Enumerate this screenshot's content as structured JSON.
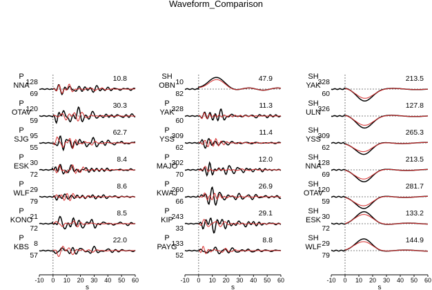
{
  "title": "Waveform_Comparison",
  "xlabel": "s",
  "colors": {
    "observed": "#000000",
    "synthetic": "#d62a2a",
    "zero_line": "#555555"
  },
  "chart_data": {
    "type": "line",
    "title": "Waveform_Comparison",
    "xlabel": "s",
    "xlim": [
      -10,
      60
    ],
    "xticks": [
      "-10",
      "0",
      "10",
      "20",
      "30",
      "40",
      "50",
      "60"
    ],
    "grid": false,
    "columns": [
      {
        "traces": [
          {
            "phase": "P",
            "station": "NNA",
            "azimuth": "128",
            "distance": "69",
            "max_amp": "10.8",
            "kind": "p"
          },
          {
            "phase": "P",
            "station": "OTAV",
            "azimuth": "120",
            "distance": "59",
            "max_amp": "30.3",
            "kind": "p"
          },
          {
            "phase": "P",
            "station": "SJG",
            "azimuth": "95",
            "distance": "55",
            "max_amp": "62.7",
            "kind": "p"
          },
          {
            "phase": "P",
            "station": "ESK",
            "azimuth": "30",
            "distance": "72",
            "max_amp": "8.4",
            "kind": "p"
          },
          {
            "phase": "P",
            "station": "WLF",
            "azimuth": "29",
            "distance": "79",
            "max_amp": "8.6",
            "kind": "p"
          },
          {
            "phase": "P",
            "station": "KONO",
            "azimuth": "21",
            "distance": "72",
            "max_amp": "8.5",
            "kind": "p"
          },
          {
            "phase": "P",
            "station": "KBS",
            "azimuth": "8",
            "distance": "57",
            "max_amp": "22.0",
            "kind": "p"
          }
        ]
      },
      {
        "traces": [
          {
            "phase": "SH",
            "station": "OBN",
            "azimuth": "10",
            "distance": "82",
            "max_amp": "47.9",
            "kind": "sh"
          },
          {
            "phase": "P",
            "station": "YAK",
            "azimuth": "328",
            "distance": "60",
            "max_amp": "11.3",
            "kind": "p"
          },
          {
            "phase": "P",
            "station": "YSS",
            "azimuth": "309",
            "distance": "62",
            "max_amp": "11.4",
            "kind": "p"
          },
          {
            "phase": "P",
            "station": "MAJO",
            "azimuth": "302",
            "distance": "70",
            "max_amp": "12.0",
            "kind": "p"
          },
          {
            "phase": "P",
            "station": "KWAJ",
            "azimuth": "260",
            "distance": "66",
            "max_amp": "26.9",
            "kind": "p"
          },
          {
            "phase": "P",
            "station": "KIP",
            "azimuth": "243",
            "distance": "33",
            "max_amp": "29.1",
            "kind": "p"
          },
          {
            "phase": "P",
            "station": "PAYG",
            "azimuth": "133",
            "distance": "52",
            "max_amp": "8.8",
            "kind": "p"
          }
        ]
      },
      {
        "traces": [
          {
            "phase": "SH",
            "station": "YAK",
            "azimuth": "328",
            "distance": "60",
            "max_amp": "213.5",
            "kind": "sh_down"
          },
          {
            "phase": "SH",
            "station": "ULN",
            "azimuth": "326",
            "distance": "",
            "max_amp": "127.8",
            "kind": "sh_down"
          },
          {
            "phase": "SH",
            "station": "YSS",
            "azimuth": "309",
            "distance": "62",
            "max_amp": "265.3",
            "kind": "sh_down"
          },
          {
            "phase": "SH",
            "station": "NNA",
            "azimuth": "128",
            "distance": "69",
            "max_amp": "213.5",
            "kind": "sh_down"
          },
          {
            "phase": "SH",
            "station": "OTAV",
            "azimuth": "120",
            "distance": "59",
            "max_amp": "281.7",
            "kind": "sh_down"
          },
          {
            "phase": "SH",
            "station": "ESK",
            "azimuth": "30",
            "distance": "72",
            "max_amp": "133.2",
            "kind": "sh_up"
          },
          {
            "phase": "SH",
            "station": "WLF",
            "azimuth": "29",
            "distance": "79",
            "max_amp": "144.9",
            "kind": "sh_up"
          }
        ]
      }
    ]
  }
}
